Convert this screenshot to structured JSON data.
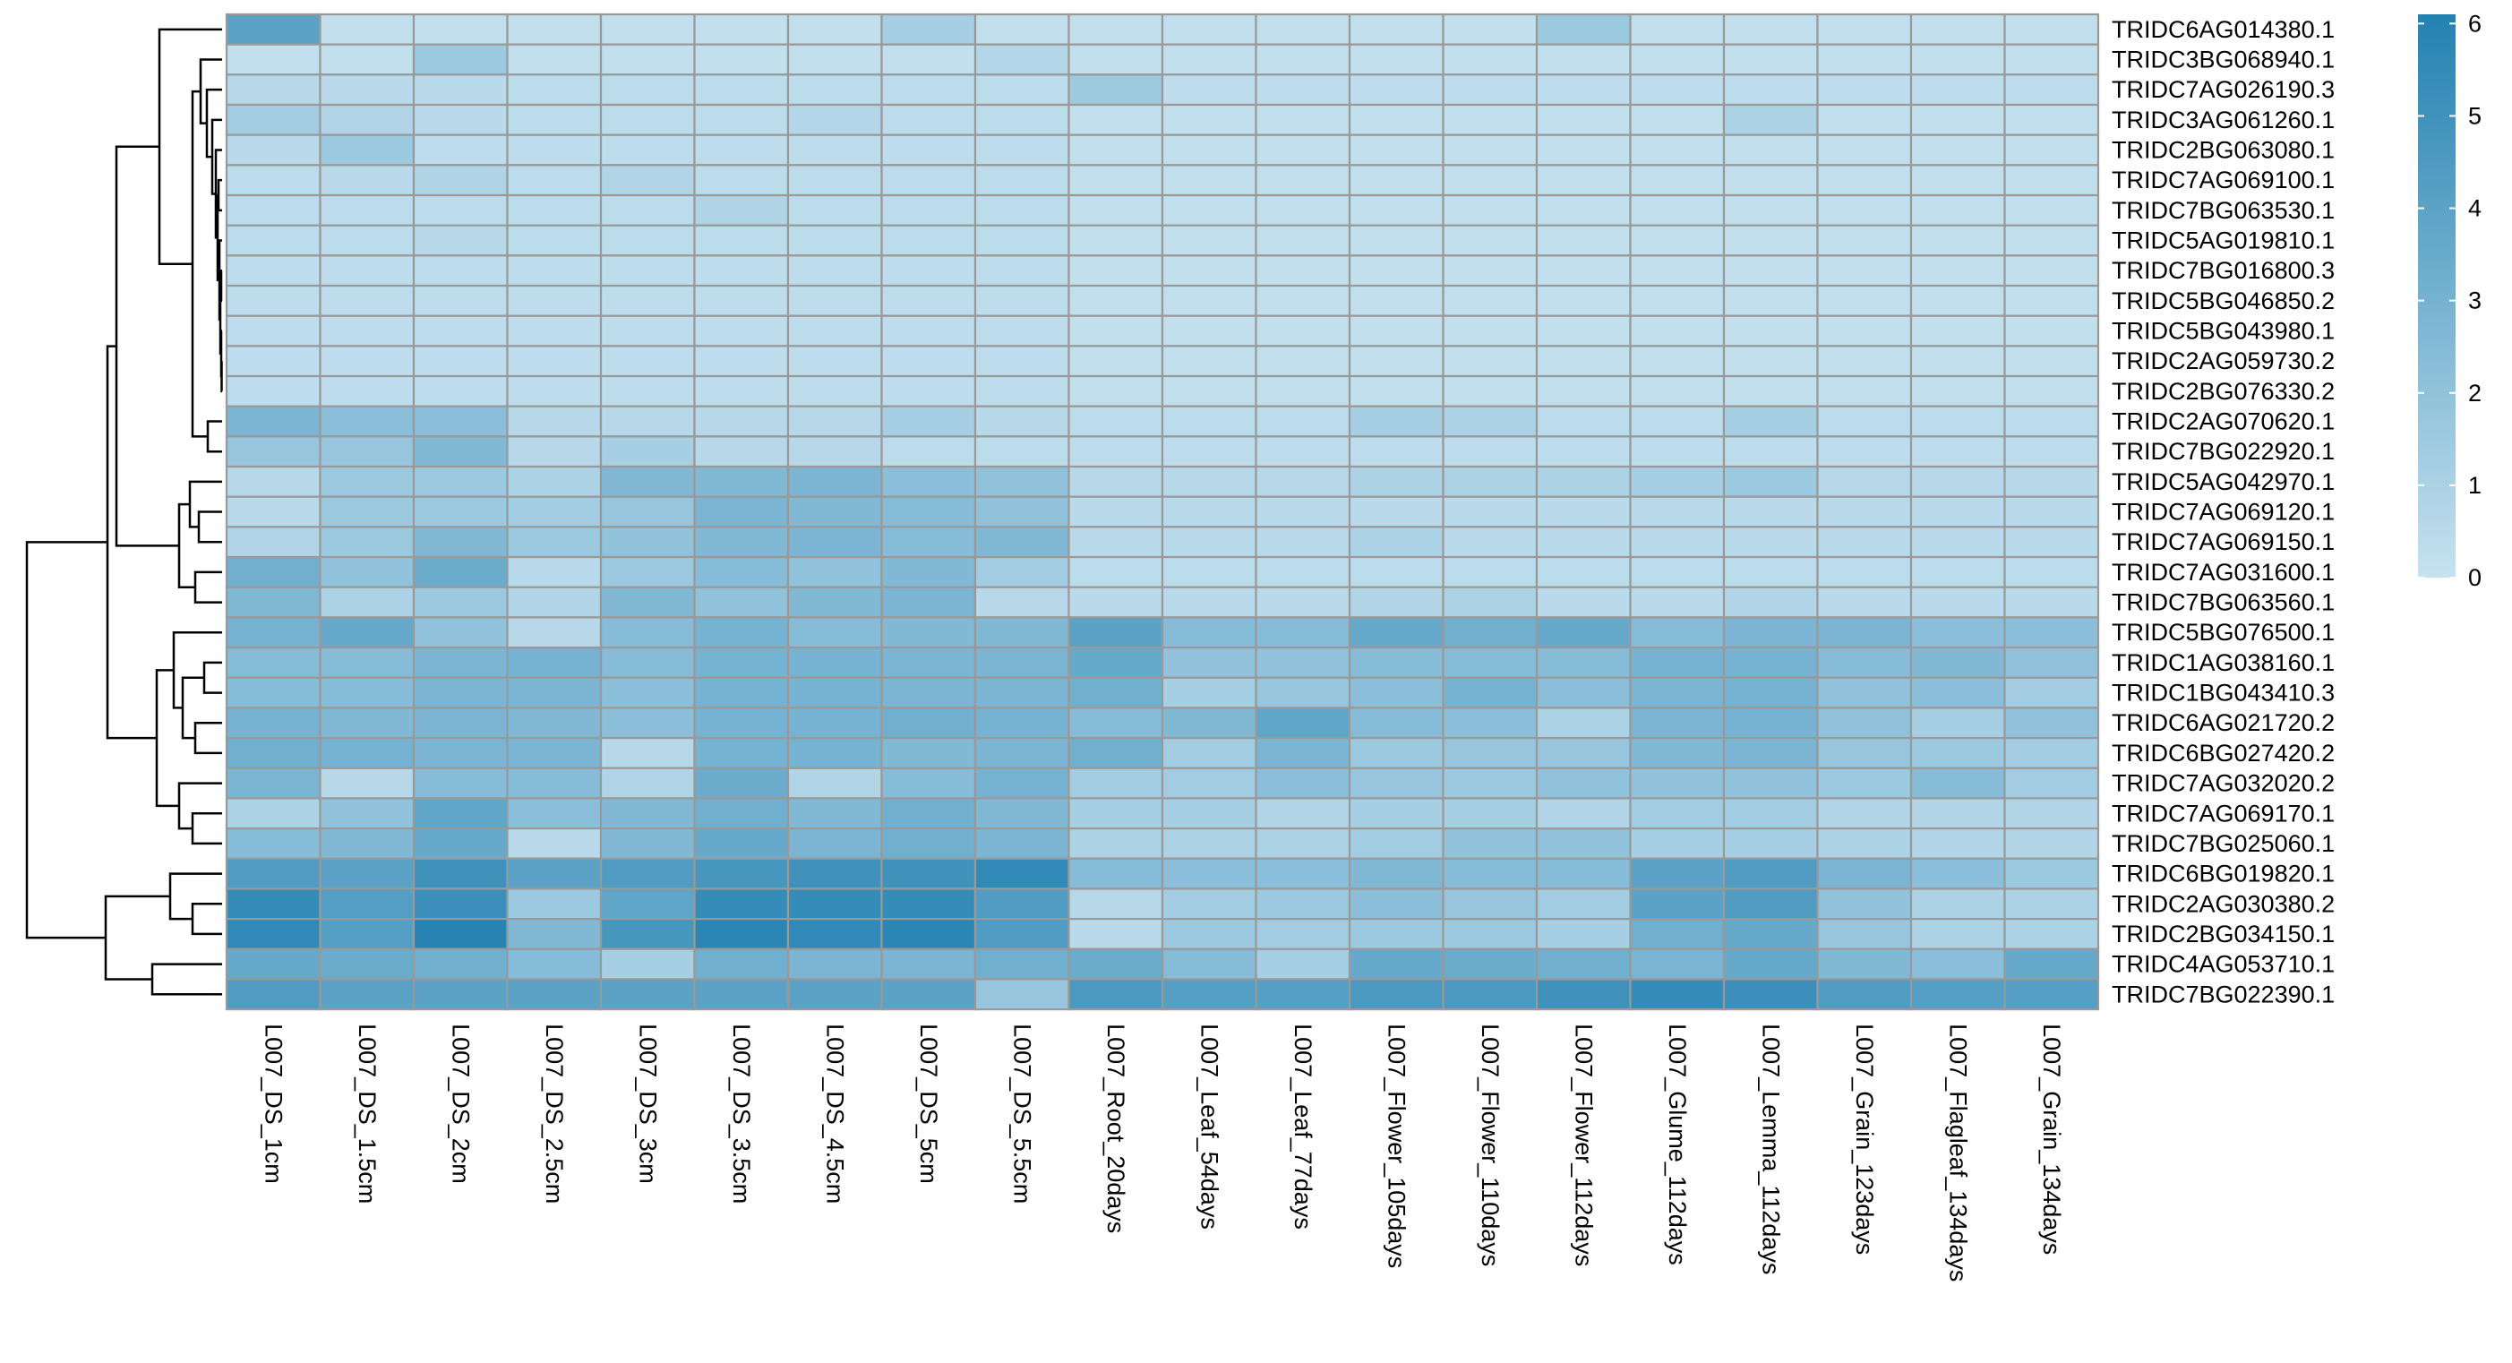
{
  "chart_data": {
    "type": "heatmap",
    "title": "",
    "xlabel": "",
    "ylabel": "",
    "columns": [
      "L007_DS_1cm",
      "L007_DS_1.5cm",
      "L007_DS_2cm",
      "L007_DS_2.5cm",
      "L007_DS_3cm",
      "L007_DS_3.5cm",
      "L007_DS_4.5cm",
      "L007_DS_5cm",
      "L007_DS_5.5cm",
      "L007_Root_20days",
      "L007_Leaf_54days",
      "L007_Leaf_77days",
      "L007_Flower_105days",
      "L007_Flower_110days",
      "L007_Flower_112days",
      "L007_Glume_112days",
      "L007_Lemma_112days",
      "L007_Grain_123days",
      "L007_Flagleaf_134days",
      "L007_Grain_134days"
    ],
    "rows": [
      "TRIDC6AG014380.1",
      "TRIDC3BG068940.1",
      "TRIDC7AG026190.3",
      "TRIDC3AG061260.1",
      "TRIDC2BG063080.1",
      "TRIDC7AG069100.1",
      "TRIDC7BG063530.1",
      "TRIDC5AG019810.1",
      "TRIDC7BG016800.3",
      "TRIDC5BG046850.2",
      "TRIDC5BG043980.1",
      "TRIDC2AG059730.2",
      "TRIDC2BG076330.2",
      "TRIDC2AG070620.1",
      "TRIDC7BG022920.1",
      "TRIDC5AG042970.1",
      "TRIDC7AG069120.1",
      "TRIDC7AG069150.1",
      "TRIDC7AG031600.1",
      "TRIDC7BG063560.1",
      "TRIDC5BG076500.1",
      "TRIDC1AG038160.1",
      "TRIDC1BG043410.3",
      "TRIDC6AG021720.2",
      "TRIDC6BG027420.2",
      "TRIDC7AG032020.2",
      "TRIDC7AG069170.1",
      "TRIDC7BG025060.1",
      "TRIDC6BG019820.1",
      "TRIDC2AG030380.2",
      "TRIDC2BG034150.1",
      "TRIDC4AG053710.1",
      "TRIDC7BG022390.1"
    ],
    "values": [
      [
        4.0,
        0.2,
        0.2,
        0.2,
        0.2,
        0.2,
        0.2,
        1.2,
        0.2,
        0.2,
        0.2,
        0.2,
        0.2,
        0.2,
        1.6,
        0.2,
        0.2,
        0.2,
        0.2,
        0.2
      ],
      [
        0.2,
        0.2,
        1.6,
        0.2,
        0.2,
        0.2,
        0.2,
        0.2,
        0.7,
        0.2,
        0.2,
        0.2,
        0.2,
        0.2,
        0.2,
        0.2,
        0.2,
        0.2,
        0.2,
        0.2
      ],
      [
        0.6,
        0.5,
        0.5,
        0.4,
        0.4,
        0.4,
        0.4,
        0.4,
        0.4,
        1.5,
        0.3,
        0.3,
        0.3,
        0.3,
        0.3,
        0.3,
        0.3,
        0.3,
        0.3,
        0.3
      ],
      [
        1.4,
        0.8,
        0.5,
        0.4,
        0.4,
        0.4,
        0.7,
        0.4,
        0.4,
        0.2,
        0.2,
        0.2,
        0.2,
        0.2,
        0.2,
        0.2,
        1.0,
        0.2,
        0.2,
        0.2
      ],
      [
        0.5,
        1.6,
        0.3,
        0.3,
        0.3,
        0.3,
        0.3,
        0.3,
        0.3,
        0.2,
        0.2,
        0.2,
        0.2,
        0.2,
        0.2,
        0.2,
        0.2,
        0.2,
        0.2,
        0.2
      ],
      [
        0.4,
        0.5,
        0.9,
        0.4,
        0.8,
        0.4,
        0.4,
        0.4,
        0.4,
        0.2,
        0.2,
        0.2,
        0.2,
        0.2,
        0.2,
        0.2,
        0.2,
        0.2,
        0.2,
        0.2
      ],
      [
        0.4,
        0.4,
        0.4,
        0.4,
        0.4,
        0.9,
        0.4,
        0.4,
        0.4,
        0.2,
        0.2,
        0.2,
        0.2,
        0.2,
        0.2,
        0.2,
        0.2,
        0.2,
        0.2,
        0.2
      ],
      [
        0.4,
        0.4,
        0.6,
        0.4,
        0.4,
        0.4,
        0.4,
        0.4,
        0.4,
        0.2,
        0.2,
        0.2,
        0.2,
        0.2,
        0.2,
        0.2,
        0.2,
        0.2,
        0.2,
        0.2
      ],
      [
        0.3,
        0.3,
        0.3,
        0.3,
        0.3,
        0.3,
        0.3,
        0.3,
        0.3,
        0.2,
        0.2,
        0.2,
        0.2,
        0.2,
        0.2,
        0.2,
        0.2,
        0.2,
        0.2,
        0.2
      ],
      [
        0.3,
        0.3,
        0.3,
        0.3,
        0.3,
        0.3,
        0.3,
        0.3,
        0.3,
        0.2,
        0.2,
        0.2,
        0.2,
        0.2,
        0.2,
        0.2,
        0.2,
        0.2,
        0.2,
        0.2
      ],
      [
        0.3,
        0.3,
        0.3,
        0.3,
        0.3,
        0.3,
        0.3,
        0.3,
        0.3,
        0.2,
        0.2,
        0.2,
        0.2,
        0.2,
        0.2,
        0.2,
        0.2,
        0.2,
        0.2,
        0.2
      ],
      [
        0.3,
        0.3,
        0.3,
        0.3,
        0.3,
        0.3,
        0.3,
        0.3,
        0.3,
        0.2,
        0.2,
        0.2,
        0.2,
        0.2,
        0.2,
        0.2,
        0.2,
        0.2,
        0.2,
        0.2
      ],
      [
        0.3,
        0.3,
        0.3,
        0.3,
        0.3,
        0.3,
        0.3,
        0.3,
        0.3,
        0.2,
        0.2,
        0.2,
        0.2,
        0.2,
        0.2,
        0.2,
        0.2,
        0.2,
        0.2,
        0.2
      ],
      [
        2.8,
        2.2,
        2.2,
        0.6,
        0.6,
        0.6,
        0.6,
        1.2,
        0.6,
        0.4,
        0.4,
        0.4,
        1.2,
        1.0,
        0.4,
        0.4,
        1.2,
        0.4,
        0.4,
        0.4
      ],
      [
        1.8,
        1.8,
        2.6,
        0.6,
        1.2,
        0.6,
        0.6,
        0.4,
        0.4,
        0.3,
        0.3,
        0.3,
        0.3,
        0.3,
        0.3,
        0.3,
        0.3,
        0.3,
        0.3,
        0.3
      ],
      [
        0.6,
        1.6,
        1.6,
        1.0,
        2.6,
        2.6,
        2.8,
        2.2,
        2.0,
        0.6,
        0.6,
        0.6,
        1.0,
        1.0,
        1.0,
        1.2,
        1.6,
        0.6,
        0.6,
        0.6
      ],
      [
        0.5,
        1.6,
        1.6,
        1.4,
        1.8,
        2.8,
        2.6,
        2.4,
        2.0,
        0.5,
        0.5,
        0.5,
        0.5,
        0.5,
        0.5,
        0.5,
        0.5,
        0.5,
        0.5,
        0.5
      ],
      [
        0.8,
        1.6,
        2.6,
        1.6,
        2.0,
        2.6,
        2.8,
        2.4,
        2.6,
        0.5,
        0.5,
        0.5,
        1.0,
        0.5,
        0.5,
        0.5,
        0.5,
        0.5,
        0.5,
        0.5
      ],
      [
        3.2,
        2.0,
        3.4,
        0.5,
        1.6,
        2.4,
        2.0,
        2.6,
        1.4,
        0.4,
        0.4,
        0.4,
        0.4,
        0.4,
        0.4,
        0.4,
        0.4,
        0.4,
        0.4,
        0.4
      ],
      [
        2.6,
        1.0,
        1.6,
        0.8,
        2.6,
        2.0,
        2.6,
        2.8,
        0.6,
        0.5,
        0.5,
        0.5,
        0.8,
        1.0,
        0.5,
        0.5,
        0.8,
        0.5,
        0.5,
        0.5
      ],
      [
        3.0,
        3.6,
        2.0,
        0.6,
        2.4,
        3.0,
        2.4,
        2.6,
        2.6,
        4.0,
        2.4,
        2.4,
        3.6,
        3.2,
        3.6,
        2.4,
        2.8,
        2.8,
        2.2,
        2.2
      ],
      [
        2.4,
        2.4,
        2.8,
        3.0,
        2.4,
        3.0,
        3.0,
        2.8,
        2.8,
        3.6,
        2.0,
        2.0,
        2.4,
        2.4,
        2.4,
        3.0,
        3.0,
        2.4,
        2.6,
        2.0
      ],
      [
        2.4,
        2.4,
        2.8,
        2.8,
        2.2,
        3.0,
        3.0,
        2.8,
        2.8,
        3.2,
        1.2,
        1.8,
        2.2,
        3.0,
        2.2,
        2.8,
        3.0,
        2.0,
        2.2,
        1.4
      ],
      [
        3.0,
        2.6,
        2.8,
        2.6,
        2.2,
        3.0,
        3.0,
        3.2,
        3.0,
        2.4,
        2.6,
        3.8,
        2.4,
        2.2,
        1.0,
        2.8,
        3.0,
        2.0,
        1.2,
        2.0
      ],
      [
        3.2,
        3.0,
        2.8,
        2.8,
        0.6,
        3.0,
        3.0,
        2.6,
        2.8,
        3.2,
        1.4,
        2.8,
        1.6,
        1.8,
        1.8,
        2.6,
        2.8,
        1.8,
        1.6,
        1.4
      ],
      [
        2.8,
        0.6,
        2.4,
        2.4,
        0.8,
        3.4,
        0.8,
        2.4,
        3.0,
        1.4,
        1.4,
        2.2,
        1.8,
        1.6,
        2.0,
        2.0,
        2.0,
        1.6,
        2.4,
        1.4
      ],
      [
        1.0,
        2.0,
        3.8,
        2.2,
        2.6,
        3.2,
        2.6,
        3.2,
        2.6,
        1.2,
        1.2,
        0.8,
        1.2,
        1.2,
        0.8,
        1.4,
        1.4,
        0.8,
        0.8,
        0.8
      ],
      [
        2.4,
        2.6,
        3.6,
        0.5,
        2.6,
        3.6,
        2.8,
        3.2,
        2.8,
        1.0,
        1.0,
        1.0,
        1.4,
        2.0,
        2.0,
        1.2,
        1.2,
        1.0,
        0.8,
        0.8
      ],
      [
        4.4,
        4.0,
        5.0,
        4.0,
        4.4,
        4.8,
        5.0,
        5.0,
        5.6,
        2.4,
        2.2,
        2.2,
        2.6,
        2.4,
        2.4,
        4.0,
        4.4,
        2.8,
        2.2,
        1.6
      ],
      [
        5.4,
        4.2,
        5.2,
        1.6,
        3.8,
        5.4,
        5.4,
        5.4,
        4.4,
        0.6,
        1.4,
        1.6,
        2.2,
        1.8,
        1.4,
        4.0,
        4.4,
        2.0,
        1.0,
        1.0
      ],
      [
        5.6,
        4.2,
        6.0,
        2.6,
        4.8,
        5.8,
        5.6,
        5.8,
        4.4,
        0.5,
        1.6,
        1.4,
        1.6,
        1.6,
        1.2,
        3.2,
        3.6,
        1.8,
        1.0,
        1.0
      ],
      [
        3.6,
        3.4,
        3.2,
        2.4,
        1.2,
        3.2,
        2.8,
        2.8,
        3.2,
        3.4,
        2.4,
        1.2,
        3.6,
        3.4,
        3.2,
        2.8,
        3.6,
        2.6,
        2.2,
        3.6
      ],
      [
        4.4,
        4.0,
        4.0,
        4.0,
        4.0,
        4.0,
        4.0,
        4.0,
        1.8,
        4.6,
        4.2,
        4.2,
        4.6,
        4.6,
        5.0,
        5.4,
        5.2,
        4.4,
        4.2,
        4.2
      ]
    ],
    "color_scale": {
      "min": 0,
      "max": 6.1,
      "low_color": "#c6e2ef",
      "high_color": "#2381b1",
      "ticks": [
        0,
        1,
        2,
        3,
        4,
        5,
        6
      ]
    },
    "cell_border_color": "#999999",
    "row_dendrogram": true,
    "legend": "right"
  }
}
